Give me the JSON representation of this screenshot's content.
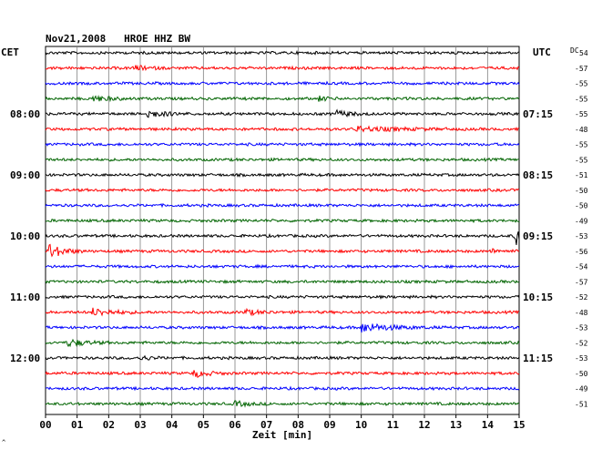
{
  "title": "Nov21,2008   HROE HHZ BW",
  "left_axis_label": "CET",
  "right_axis_label": "UTC",
  "dc_header": "DC",
  "xlabel": "Zeit [min]",
  "corner_mark": "^",
  "colors": {
    "black": "#000000",
    "red": "#ff0000",
    "blue": "#0000ff",
    "green": "#006400",
    "grid": "#808080"
  },
  "chart_data": {
    "type": "line",
    "description_of_marks": "helicorder: 24 traces of 15 minutes each, cycling black/red/blue/green",
    "x_ticks": [
      "00",
      "01",
      "02",
      "03",
      "04",
      "05",
      "06",
      "07",
      "08",
      "09",
      "10",
      "11",
      "12",
      "13",
      "14",
      "15"
    ],
    "xlim": [
      0,
      15
    ],
    "cet_hours": [
      "08:00",
      "09:00",
      "10:00",
      "11:00",
      "12:00"
    ],
    "utc_hours": [
      "07:15",
      "08:15",
      "09:15",
      "10:15",
      "11:15"
    ],
    "hour_row_index": [
      4,
      8,
      12,
      16,
      20
    ],
    "dc_values": [
      "54",
      "-57",
      "-55",
      "-55",
      "-55",
      "-48",
      "-55",
      "-55",
      "-51",
      "-50",
      "-50",
      "-49",
      "-53",
      "-56",
      "-54",
      "-57",
      "-52",
      "-48",
      "-53",
      "-52",
      "-53",
      "-50",
      "-49",
      "-51"
    ],
    "trace_colors": [
      "black",
      "red",
      "blue",
      "green"
    ],
    "events": [
      {
        "row": 1,
        "t": 2.8,
        "amp": 2.5,
        "dur": 0.4
      },
      {
        "row": 3,
        "t": 1.5,
        "amp": 3,
        "dur": 0.5
      },
      {
        "row": 3,
        "t": 8.6,
        "amp": 2.5,
        "dur": 0.3
      },
      {
        "row": 4,
        "t": 3.2,
        "amp": 4,
        "dur": 0.5
      },
      {
        "row": 4,
        "t": 9.2,
        "amp": 3.5,
        "dur": 0.4
      },
      {
        "row": 5,
        "t": 9.8,
        "amp": 2.5,
        "dur": 1.2
      },
      {
        "row": 12,
        "t": 14.9,
        "amp": 10,
        "dur": 0.3
      },
      {
        "row": 13,
        "t": 0.1,
        "amp": 8,
        "dur": 0.4
      },
      {
        "row": 13,
        "t": 14.1,
        "amp": 2,
        "dur": 0.3
      },
      {
        "row": 17,
        "t": 1.5,
        "amp": 4,
        "dur": 0.6
      },
      {
        "row": 17,
        "t": 6.3,
        "amp": 3,
        "dur": 0.4
      },
      {
        "row": 18,
        "t": 10.0,
        "amp": 5,
        "dur": 0.8
      },
      {
        "row": 19,
        "t": 0.7,
        "amp": 4,
        "dur": 0.5
      },
      {
        "row": 20,
        "t": 3.0,
        "amp": 2.5,
        "dur": 0.3
      },
      {
        "row": 21,
        "t": 4.7,
        "amp": 4,
        "dur": 0.4
      },
      {
        "row": 23,
        "t": 6.0,
        "amp": 2.5,
        "dur": 0.4
      }
    ]
  }
}
